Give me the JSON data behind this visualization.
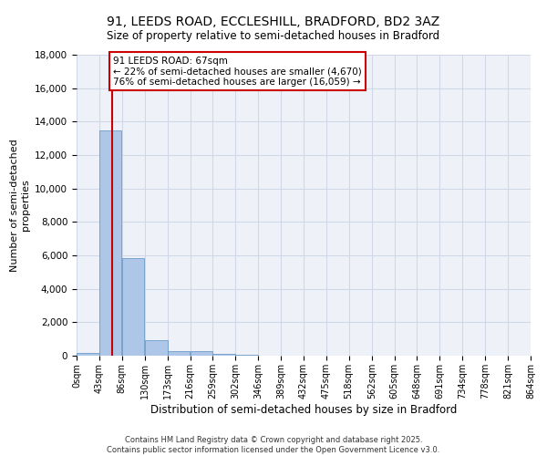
{
  "title": "91, LEEDS ROAD, ECCLESHILL, BRADFORD, BD2 3AZ",
  "subtitle": "Size of property relative to semi-detached houses in Bradford",
  "xlabel": "Distribution of semi-detached houses by size in Bradford",
  "ylabel": "Number of semi-detached\nproperties",
  "bin_edges": [
    0,
    43,
    86,
    130,
    173,
    216,
    259,
    302,
    346,
    389,
    432,
    475,
    518,
    562,
    605,
    648,
    691,
    734,
    778,
    821,
    864
  ],
  "bin_labels": [
    "0sqm",
    "43sqm",
    "86sqm",
    "130sqm",
    "173sqm",
    "216sqm",
    "259sqm",
    "302sqm",
    "346sqm",
    "389sqm",
    "432sqm",
    "475sqm",
    "518sqm",
    "562sqm",
    "605sqm",
    "648sqm",
    "691sqm",
    "734sqm",
    "778sqm",
    "821sqm",
    "864sqm"
  ],
  "bar_heights": [
    150,
    13500,
    5850,
    950,
    300,
    280,
    130,
    60,
    0,
    0,
    0,
    0,
    0,
    0,
    0,
    0,
    0,
    0,
    0,
    0
  ],
  "bar_color": "#aec6e8",
  "bar_edgecolor": "#5a8fc0",
  "property_size": 67,
  "property_label": "91 LEEDS ROAD: 67sqm",
  "pct_smaller": 22,
  "n_smaller": 4670,
  "pct_larger": 76,
  "n_larger": 16059,
  "vline_color": "#cc0000",
  "annotation_box_color": "#cc0000",
  "ylim": [
    0,
    18000
  ],
  "yticks": [
    0,
    2000,
    4000,
    6000,
    8000,
    10000,
    12000,
    14000,
    16000,
    18000
  ],
  "grid_color": "#d0d8e8",
  "bg_color": "#eef2f8",
  "title_fontsize": 10,
  "subtitle_fontsize": 9,
  "footnote1": "Contains HM Land Registry data © Crown copyright and database right 2025.",
  "footnote2": "Contains public sector information licensed under the Open Government Licence v3.0."
}
